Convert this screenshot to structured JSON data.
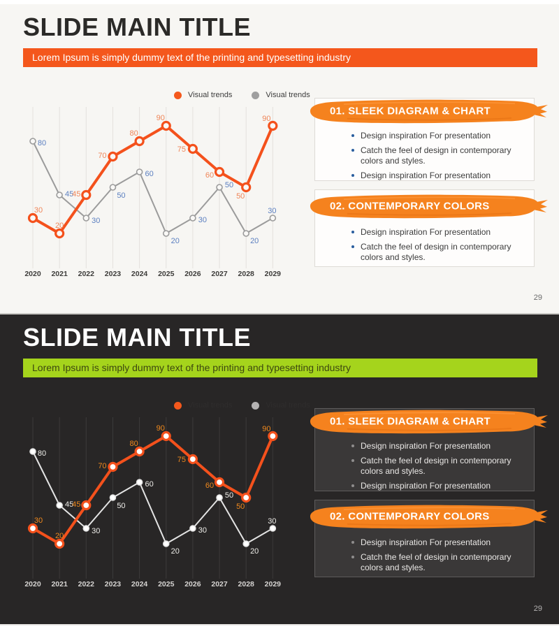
{
  "shared": {
    "title": "SLIDE MAIN TITLE",
    "subtitle": "Lorem Ipsum is simply dummy text of the printing and typesetting industry",
    "legend": [
      {
        "label": "Visual trends"
      },
      {
        "label": "Visual trends"
      }
    ],
    "cards": [
      {
        "heading": "01. SLEEK DIAGRAM & CHART",
        "bullets": [
          "Design inspiration For presentation",
          "Catch the feel of design in contemporary colors and styles.",
          "Design inspiration For presentation"
        ]
      },
      {
        "heading": "02. CONTEMPORARY COLORS",
        "bullets": [
          "Design inspiration For presentation",
          "Catch the feel of design in contemporary colors and styles."
        ]
      }
    ],
    "page_number": "29"
  },
  "chart_data": {
    "type": "line",
    "x": [
      "2020",
      "2021",
      "2022",
      "2023",
      "2024",
      "2025",
      "2026",
      "2027",
      "2028",
      "2029"
    ],
    "series": [
      {
        "name": "Visual trends",
        "values": [
          30,
          20,
          45,
          70,
          80,
          90,
          75,
          60,
          50,
          90
        ]
      },
      {
        "name": "Visual trends",
        "values": [
          80,
          45,
          30,
          50,
          60,
          20,
          30,
          50,
          20,
          30
        ]
      }
    ],
    "ylim": [
      0,
      100
    ],
    "grid": "vertical-only",
    "legend_position": "top",
    "data_labels": true
  },
  "colors": {
    "accent_orange": "#f4571c",
    "brush_orange": "#f5821e",
    "lime_green": "#a5d41c",
    "series1_line": "#f4511c",
    "series2_line_light": "#9b9b9b",
    "series2_line_dark": "#e4e4e4",
    "label1_light": "#ef8659",
    "label2_light": "#5b7fc0",
    "label1_dark": "#f0891d",
    "label2_dark": "#eeede9"
  }
}
